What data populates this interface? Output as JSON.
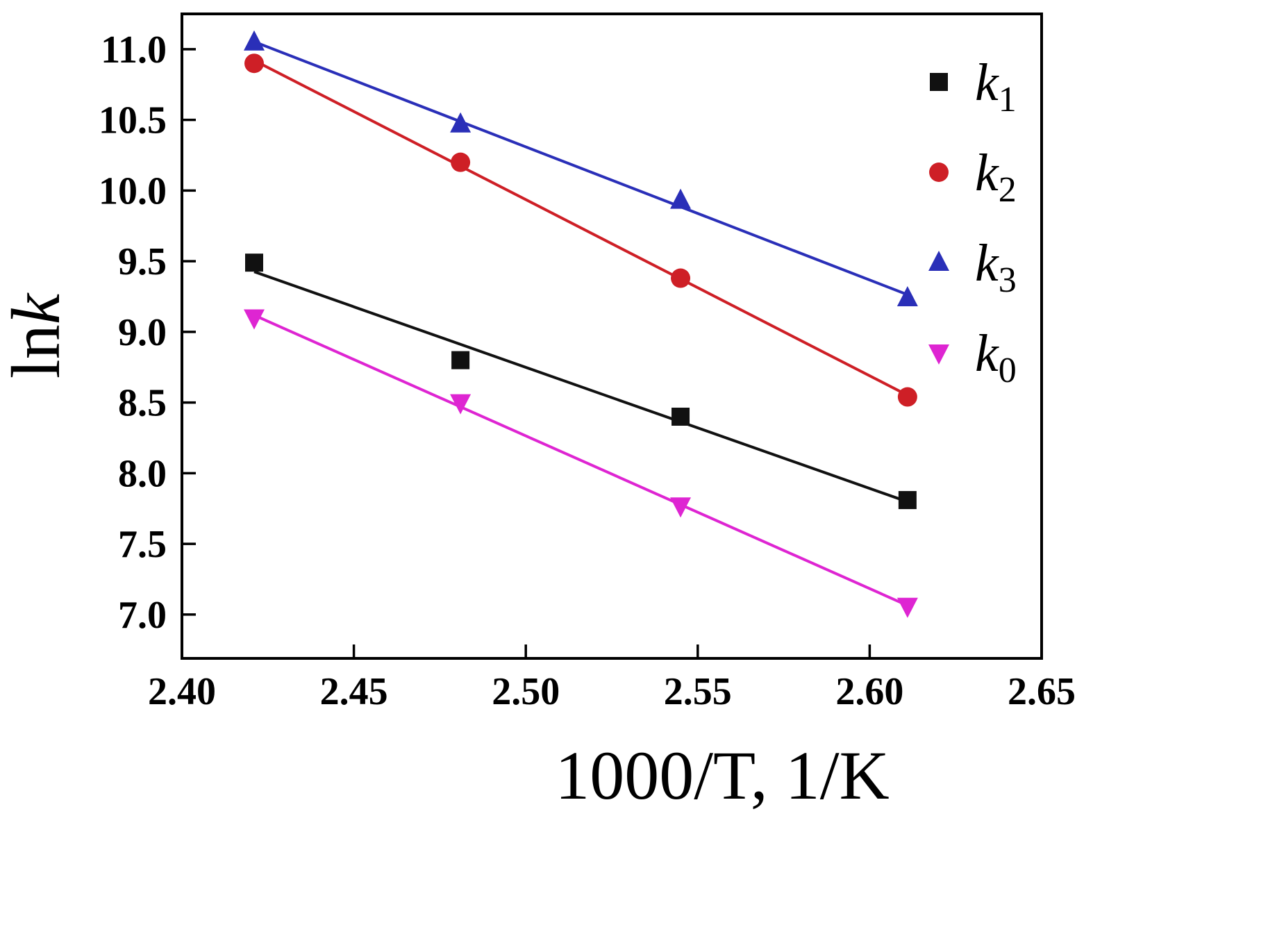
{
  "figure": {
    "background": "#ffffff",
    "frame_color": "#000000"
  },
  "chart_data": {
    "type": "scatter",
    "title": "",
    "xlabel": "1000/T, 1/K",
    "ylabel_parts": [
      {
        "text": "ln",
        "italic": false
      },
      {
        "text": "k",
        "italic": true
      }
    ],
    "xlim": [
      2.4,
      2.65
    ],
    "ylim": [
      6.69,
      11.25
    ],
    "x_ticks": [
      2.4,
      2.45,
      2.5,
      2.55,
      2.6,
      2.65
    ],
    "x_tick_labels": [
      "2.40",
      "2.45",
      "2.50",
      "2.55",
      "2.60",
      "2.65"
    ],
    "y_ticks": [
      7.0,
      7.5,
      8.0,
      8.5,
      9.0,
      9.5,
      10.0,
      10.5,
      11.0
    ],
    "y_tick_labels": [
      "7.0",
      "7.5",
      "8.0",
      "8.5",
      "9.0",
      "9.5",
      "10.0",
      "10.5",
      "11.0"
    ],
    "grid": false,
    "legend_position": "top-right-inside",
    "fit": "linear",
    "x": [
      2.421,
      2.481,
      2.545,
      2.611
    ],
    "series": [
      {
        "name": "k1",
        "label_base": "k",
        "label_sub": "1",
        "marker": "square",
        "color": "#111111",
        "values": [
          9.49,
          8.8,
          8.4,
          7.81
        ]
      },
      {
        "name": "k2",
        "label_base": "k",
        "label_sub": "2",
        "marker": "circle",
        "color": "#ce1f26",
        "values": [
          10.9,
          10.2,
          9.38,
          8.54
        ]
      },
      {
        "name": "k3",
        "label_base": "k",
        "label_sub": "3",
        "marker": "triangle-up",
        "color": "#2a2fb8",
        "values": [
          11.05,
          10.47,
          9.93,
          9.24
        ]
      },
      {
        "name": "k0",
        "label_base": "k",
        "label_sub": "0",
        "marker": "triangle-down",
        "color": "#de25d2",
        "values": [
          9.1,
          8.5,
          7.77,
          7.06
        ]
      }
    ]
  }
}
